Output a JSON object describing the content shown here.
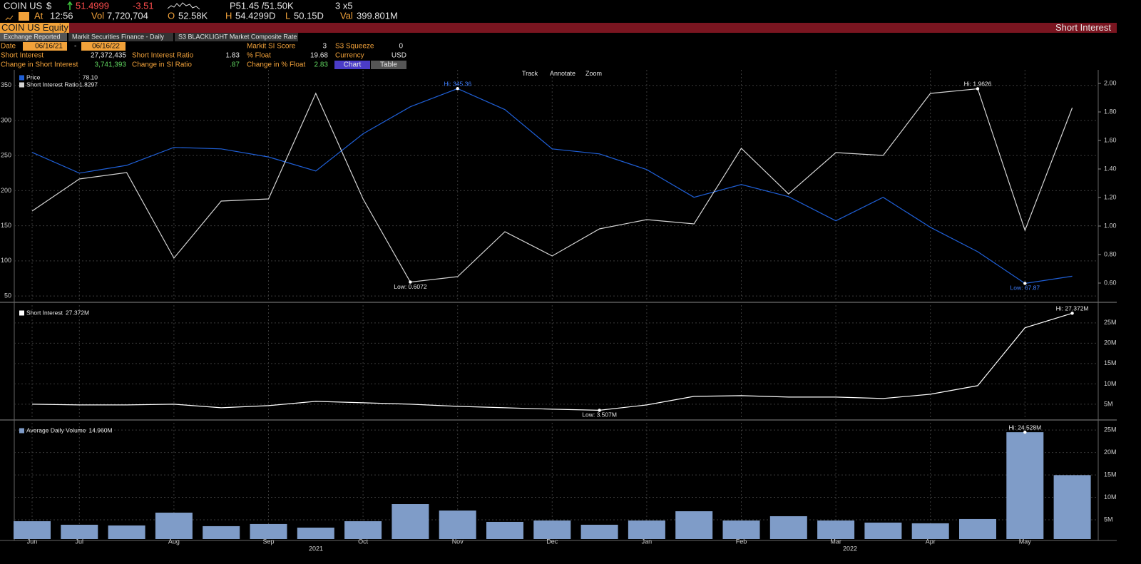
{
  "header": {
    "ticker": "COIN US",
    "currency": "$",
    "last": "51.4999",
    "change": "-3.51",
    "bid_ask": "P51.45 /51.50K",
    "size": "3 x5",
    "quote": [
      {
        "label": "At",
        "value": "12:56"
      },
      {
        "label": "Vol",
        "value": "7,720,704"
      },
      {
        "label": "O",
        "value": "52.58K"
      },
      {
        "label": "H",
        "value": "54.4299D"
      },
      {
        "label": "L",
        "value": "50.15D"
      },
      {
        "label": "Val",
        "value": "399.801M"
      }
    ]
  },
  "title_bar": {
    "security": "COIN US Equity",
    "function": "Short Interest"
  },
  "tabs": [
    "Exchange Reported",
    "Markit Securities Finance - Daily",
    "S3 BLACKLIGHT Market Composite Rate"
  ],
  "fields": {
    "date_label": "Date",
    "start_date": "06/16/21",
    "date_separator": "-",
    "end_date": "06/16/22",
    "stats": [
      {
        "label": "Markit SI Score",
        "value": "3"
      },
      {
        "label": "S3 Squeeze",
        "value": "0"
      },
      {
        "label": "Short Interest",
        "value": "27,372,435"
      },
      {
        "label": "Short Interest Ratio",
        "value": "1.83"
      },
      {
        "label": "% Float",
        "value": "19.68"
      },
      {
        "label": "Currency",
        "value": "USD"
      },
      {
        "label": "Change in Short Interest",
        "value": "3,741,393"
      },
      {
        "label": "Change in SI Ratio",
        "value": ".87"
      },
      {
        "label": "Change in % Float",
        "value": "2.83"
      }
    ]
  },
  "view_buttons": [
    "Chart",
    "Table"
  ],
  "toolbar": [
    "Track",
    "Annotate",
    "Zoom"
  ],
  "year_labels": [
    "2021",
    "2022"
  ],
  "chart_data": [
    {
      "type": "line",
      "ylim": [
        45,
        370
      ],
      "yticks": [
        50,
        100,
        150,
        200,
        250,
        300,
        350
      ],
      "y2lim": [
        0.485,
        2.085
      ],
      "y2ticks": [
        {
          "value": 0.6,
          "label": "0.60"
        },
        {
          "value": 0.8,
          "label": "0.80"
        },
        {
          "value": 1,
          "label": "1.00"
        },
        {
          "value": 1.2,
          "label": "1.20"
        },
        {
          "value": 1.4,
          "label": "1.40"
        },
        {
          "value": 1.6,
          "label": "1.60"
        },
        {
          "value": 1.8,
          "label": "1.80"
        },
        {
          "value": 2,
          "label": "2.00"
        }
      ],
      "series": [
        {
          "name": "Price",
          "color": "#1f5fd6",
          "legend_value": "78.10",
          "hi_label": "Hi: 345.36",
          "low_label": "Low: 67.87",
          "values": [
            254.5,
            225,
            236,
            261.6,
            259.5,
            248,
            228,
            281,
            319.5,
            345.36,
            315.5,
            259.5,
            252.4,
            230,
            190.5,
            208.7,
            191.5,
            157,
            190.5,
            147.8,
            113,
            67.87,
            78.1
          ]
        },
        {
          "name": "Short Interest Ratio",
          "color": "#d4d4d4",
          "axis": "y2",
          "legend_value": "1.8297",
          "hi_label": "Hi: 1.9626",
          "low_label": "Low: 0.6072",
          "values": [
            1.105,
            1.33,
            1.375,
            0.775,
            1.175,
            1.19,
            1.93,
            1.19,
            0.6072,
            0.645,
            0.96,
            0.79,
            0.98,
            1.045,
            1.015,
            1.545,
            1.225,
            1.515,
            1.495,
            1.93,
            1.9626,
            0.97,
            1.8297
          ]
        }
      ]
    },
    {
      "type": "line",
      "ylim": [
        1.3,
        29
      ],
      "yticks": [
        {
          "value": 5,
          "label": "5M"
        },
        {
          "value": 10,
          "label": "10M"
        },
        {
          "value": 15,
          "label": "15M"
        },
        {
          "value": 20,
          "label": "20M"
        },
        {
          "value": 25,
          "label": "25M"
        }
      ],
      "series": [
        {
          "name": "Short Interest",
          "color": "#ffffff",
          "legend_value": "27.372M",
          "hi_label": "Hi: 27.372M",
          "low_label": "Low: 3.507M",
          "values": [
            5.0,
            4.82,
            4.82,
            5.0,
            4.12,
            4.65,
            5.7,
            5.35,
            5.0,
            4.47,
            4.12,
            3.77,
            3.507,
            4.82,
            6.93,
            7.1,
            6.75,
            6.75,
            6.4,
            7.46,
            9.56,
            23.8,
            27.372
          ]
        }
      ]
    },
    {
      "type": "bar",
      "ylim": [
        0.7,
        26.3
      ],
      "yticks": [
        {
          "value": 5,
          "label": "5M"
        },
        {
          "value": 10,
          "label": "10M"
        },
        {
          "value": 15,
          "label": "15M"
        },
        {
          "value": 20,
          "label": "20M"
        },
        {
          "value": 25,
          "label": "25M"
        }
      ],
      "categories": [
        "Jun",
        "Jul",
        null,
        "Aug",
        null,
        "Sep",
        null,
        "Oct",
        null,
        "Nov",
        null,
        "Dec",
        null,
        "Jan",
        null,
        "Feb",
        null,
        "Mar",
        null,
        "Apr",
        null,
        "May",
        null
      ],
      "series": [
        {
          "name": "Average Daily Volume",
          "color": "#7f9cc8",
          "legend_value": "14.960M",
          "hi_label": "Hi: 24.528M",
          "values": [
            4.68,
            3.89,
            3.73,
            6.59,
            3.57,
            4.05,
            3.25,
            4.68,
            8.49,
            7.06,
            4.52,
            4.84,
            3.89,
            4.84,
            6.9,
            4.84,
            5.79,
            4.84,
            4.37,
            4.21,
            5.16,
            24.528,
            14.96
          ]
        }
      ]
    }
  ]
}
